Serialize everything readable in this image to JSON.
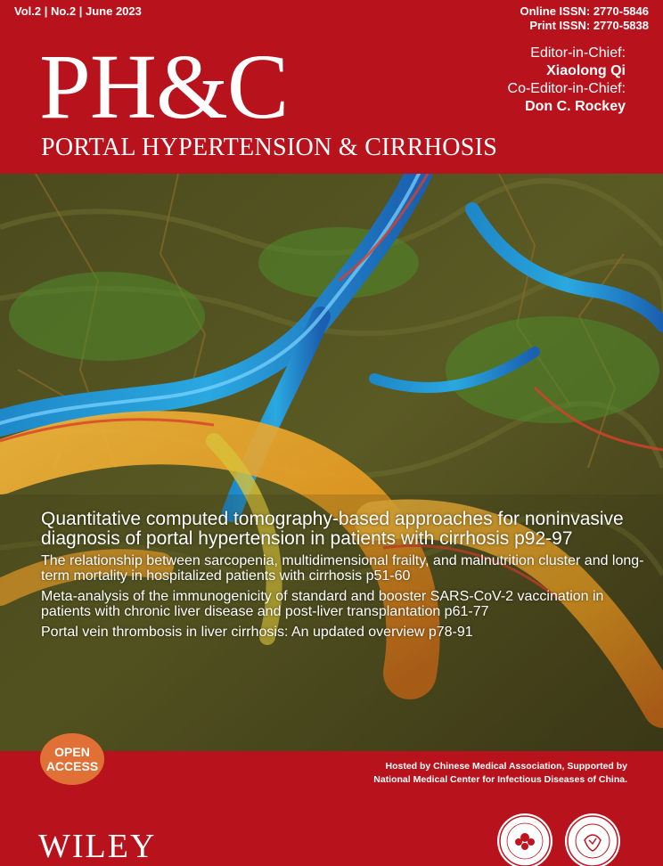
{
  "header": {
    "issue": "Vol.2 | No.2 | June 2023",
    "online_issn": "Online ISSN: 2770-5846",
    "print_issn": "Print ISSN: 2770-5838",
    "logo": "PH&C",
    "subtitle": "PORTAL HYPERTENSION & CIRRHOSIS",
    "editor_label": "Editor-in-Chief:",
    "editor_name": "Xiaolong Qi",
    "co_editor_label": "Co-Editor-in-Chief:",
    "co_editor_name": "Don C. Rockey"
  },
  "headlines": [
    "Quantitative computed tomography-based approaches for noninvasive diagnosis of portal hypertension in patients with cirrhosis  p92-97",
    "The relationship between sarcopenia, multidimensional frailty, and malnutrition cluster and long-term mortality in hospitalized patients with cirrhosis  p51-60",
    "Meta-analysis of the immunogenicity of standard and booster SARS-CoV-2 vaccination in patients with chronic liver disease and post-liver transplantation  p61-77",
    "Portal vein thrombosis in liver cirrhosis: An updated overview  p78-91"
  ],
  "open_access": {
    "line1": "OPEN",
    "line2": "ACCESS",
    "color": "#e07035"
  },
  "footer": {
    "hosted_line1": "Hosted by Chinese Medical Association, Supported by",
    "hosted_line2": "National Medical Center for Infectious Diseases of China.",
    "publisher": "WILEY"
  },
  "colors": {
    "brand_red": "#b8131c",
    "white": "#ffffff"
  }
}
